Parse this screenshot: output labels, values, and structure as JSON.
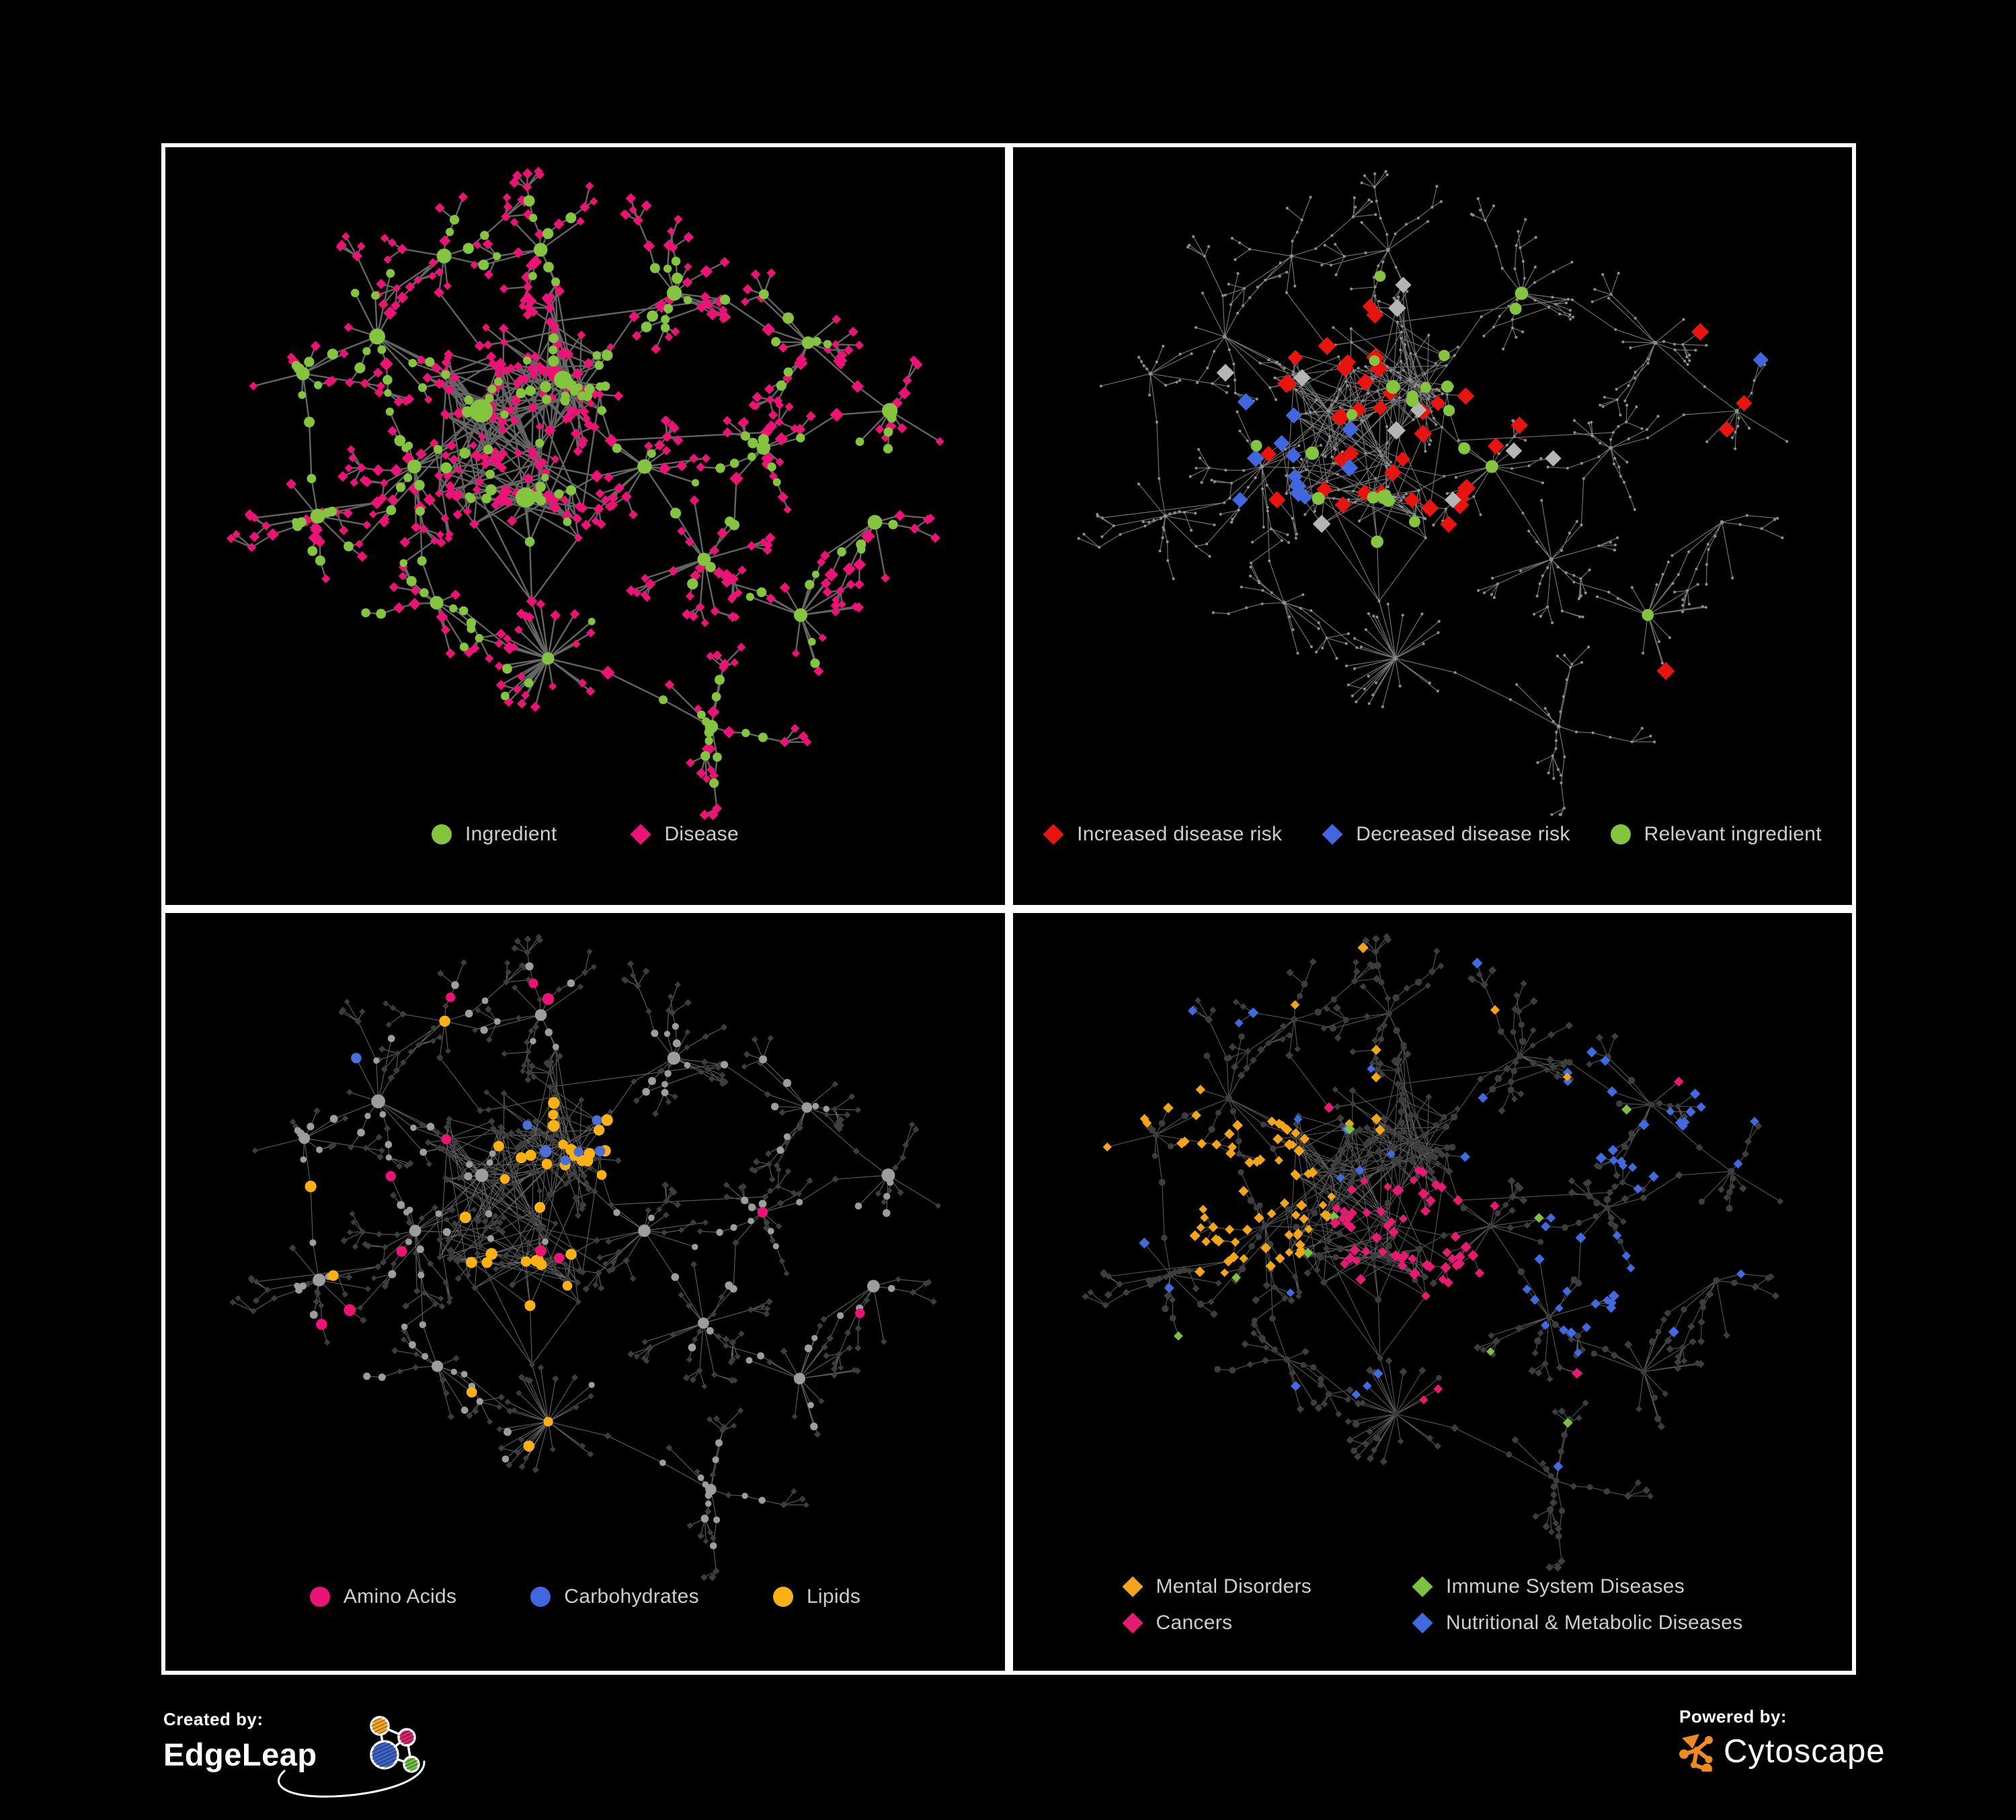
{
  "page": {
    "background": "#000000",
    "panel_border": "#ffffff"
  },
  "panels": [
    {
      "name": "ingredient-disease-network",
      "legend": [
        {
          "shape": "circle",
          "color": "#85C43F",
          "label": "Ingredient"
        },
        {
          "shape": "diamond",
          "color": "#EB1375",
          "label": "Disease"
        }
      ],
      "style": {
        "edge_color": "#6C6C6C",
        "edge_width": 2.4,
        "edge_opacity": 0.92,
        "ingredient_color": "#85C43F",
        "disease_color": "#EB1375"
      }
    },
    {
      "name": "disease-risk-network",
      "legend": [
        {
          "shape": "diamond",
          "color": "#E81410",
          "label": "Increased disease risk"
        },
        {
          "shape": "diamond",
          "color": "#4166DF",
          "label": "Decreased disease risk"
        },
        {
          "shape": "circle",
          "color": "#85C43F",
          "label": "Relevant ingredient"
        }
      ],
      "style": {
        "edge_color": "#919191",
        "edge_width": 1.15,
        "edge_opacity": 0.8,
        "base_node_color": "#8F8F8F",
        "increased_color": "#E81410",
        "decreased_color": "#4166DF",
        "neutral_color": "#B5B5B5",
        "ingredient_color": "#85C43F"
      }
    },
    {
      "name": "ingredient-class-network",
      "legend": [
        {
          "shape": "circle",
          "color": "#EB1375",
          "label": "Amino Acids"
        },
        {
          "shape": "circle",
          "color": "#4166DF",
          "label": "Carbohydrates"
        },
        {
          "shape": "circle",
          "color": "#FBB116",
          "label": "Lipids"
        }
      ],
      "style": {
        "edge_color": "#A0A0A0",
        "edge_width": 1.1,
        "edge_opacity": 0.6,
        "ingredient_color": "#9D9D9D",
        "disease_color": "#3D3D3D",
        "amino_color": "#EB1375",
        "carb_color": "#4A6FD9",
        "lipid_color": "#FBB116"
      }
    },
    {
      "name": "disease-category-network",
      "legend": [
        {
          "shape": "diamond",
          "color": "#F2A51B",
          "label": "Mental Disorders"
        },
        {
          "shape": "diamond",
          "color": "#E51A70",
          "label": "Cancers"
        },
        {
          "shape": "diamond",
          "color": "#7CC142",
          "label": "Immune System Diseases"
        },
        {
          "shape": "diamond",
          "color": "#4169E0",
          "label": "Nutritional & Metabolic Diseases"
        }
      ],
      "legend_columns": 2,
      "style": {
        "edge_color": "#A0A0A0",
        "edge_width": 1.1,
        "edge_opacity": 0.55,
        "base_color": "#3D3D3D",
        "mental_color": "#F2A51B",
        "immune_color": "#7CC142",
        "cancer_color": "#E51A70",
        "metabolic_color": "#4169E0"
      }
    }
  ],
  "footer": {
    "created_by_label": "Created by:",
    "created_by_name": "EdgeLeap",
    "powered_by_label": "Powered by:",
    "powered_by_name": "Cytoscape",
    "edgeleap_colors": {
      "orange": "#F5A623",
      "pink": "#D6246E",
      "blue": "#3E63C4",
      "green": "#6FBE44"
    },
    "cytoscape_color": "#EE8A21"
  }
}
